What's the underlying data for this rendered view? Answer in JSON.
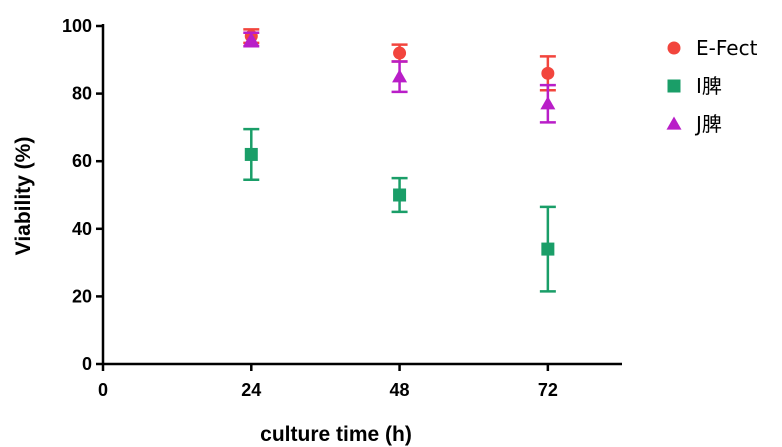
{
  "chart_data": {
    "type": "scatter",
    "xlabel": "culture time (h)",
    "ylabel": "Viability (%)",
    "xlim": [
      0,
      84
    ],
    "ylim": [
      0,
      100
    ],
    "x_ticks": [
      "0",
      "24",
      "48",
      "72"
    ],
    "y_ticks": [
      "0",
      "20",
      "40",
      "60",
      "80",
      "100"
    ],
    "grid": false,
    "legend_position": "top-right",
    "series": [
      {
        "name": "E-Fect",
        "marker": "circle",
        "color": "#f2453d",
        "x": [
          24,
          48,
          72
        ],
        "y": [
          97,
          92,
          86
        ],
        "err": [
          2,
          2.5,
          5
        ]
      },
      {
        "name": "I脾",
        "marker": "square",
        "color": "#1a9e68",
        "x": [
          24,
          48,
          72
        ],
        "y": [
          62,
          50,
          34
        ],
        "err": [
          7.5,
          5,
          12.5
        ]
      },
      {
        "name": "J脾",
        "marker": "triangle",
        "color": "#b91ec8",
        "x": [
          24,
          48,
          72
        ],
        "y": [
          96,
          85,
          77
        ],
        "err": [
          2,
          4.5,
          5.5
        ]
      }
    ]
  }
}
